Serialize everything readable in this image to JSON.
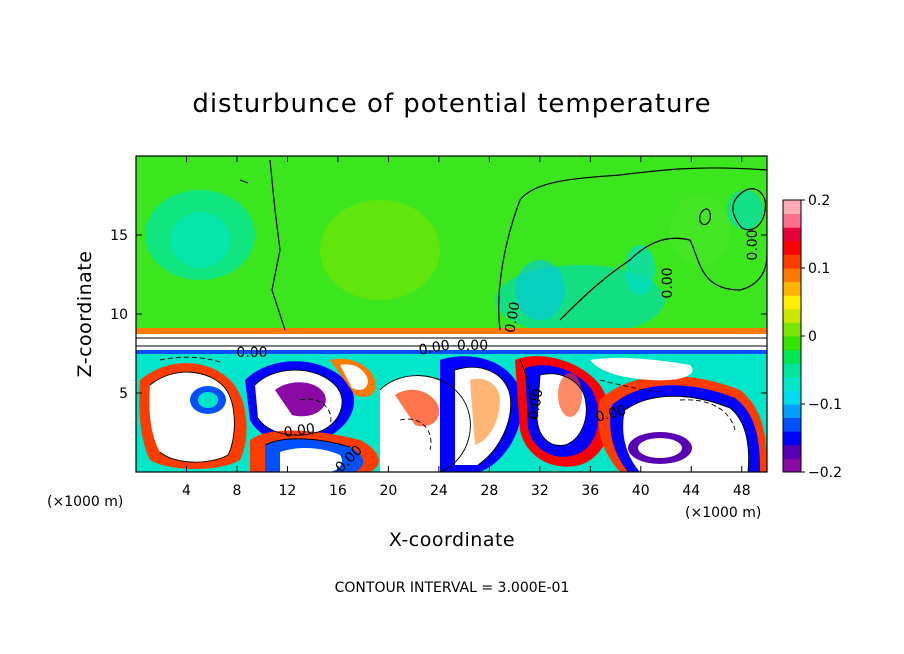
{
  "chart_data": {
    "type": "heatmap",
    "title": "disturbunce of potential temperature",
    "xlabel": "X-coordinate",
    "ylabel": "Z-coordinate",
    "x_unit": "(×1000 m)",
    "y_unit": "(×1000 m)",
    "footer": "CONTOUR INTERVAL = 3.000E-01",
    "xlim": [
      0,
      50
    ],
    "ylim": [
      0,
      20
    ],
    "x_ticks": [
      4,
      8,
      12,
      16,
      20,
      24,
      28,
      32,
      36,
      40,
      44,
      48
    ],
    "x_tick_labels": [
      "4",
      "8",
      "12",
      "16",
      "20",
      "24",
      "28",
      "32",
      "36",
      "40",
      "44",
      "48"
    ],
    "y_ticks": [
      5,
      10,
      15
    ],
    "y_tick_labels": [
      "5",
      "10",
      "15"
    ],
    "colorbar": {
      "range": [
        -0.2,
        0.2
      ],
      "ticks": [
        0.2,
        0.1,
        0,
        -0.1,
        -0.2
      ],
      "tick_labels": [
        "0.2",
        "0.1",
        "0",
        "−0.1",
        "−0.2"
      ],
      "colors": [
        "#8b0aa5",
        "#5a00b4",
        "#0000ff",
        "#0050ff",
        "#00a0ff",
        "#00dcf0",
        "#00e6c8",
        "#00e69b",
        "#00e650",
        "#32e600",
        "#78e600",
        "#c8e600",
        "#fff000",
        "#ffb400",
        "#ff7800",
        "#ff3c00",
        "#ff0000",
        "#e6003c",
        "#ff6e8c",
        "#ffaab4"
      ]
    },
    "contour_labels": [
      "0.00",
      "0.00",
      "0.00",
      "0.00",
      "0.00",
      "0.00",
      "0.00",
      "0.00",
      "0.00",
      "-0.00"
    ]
  }
}
